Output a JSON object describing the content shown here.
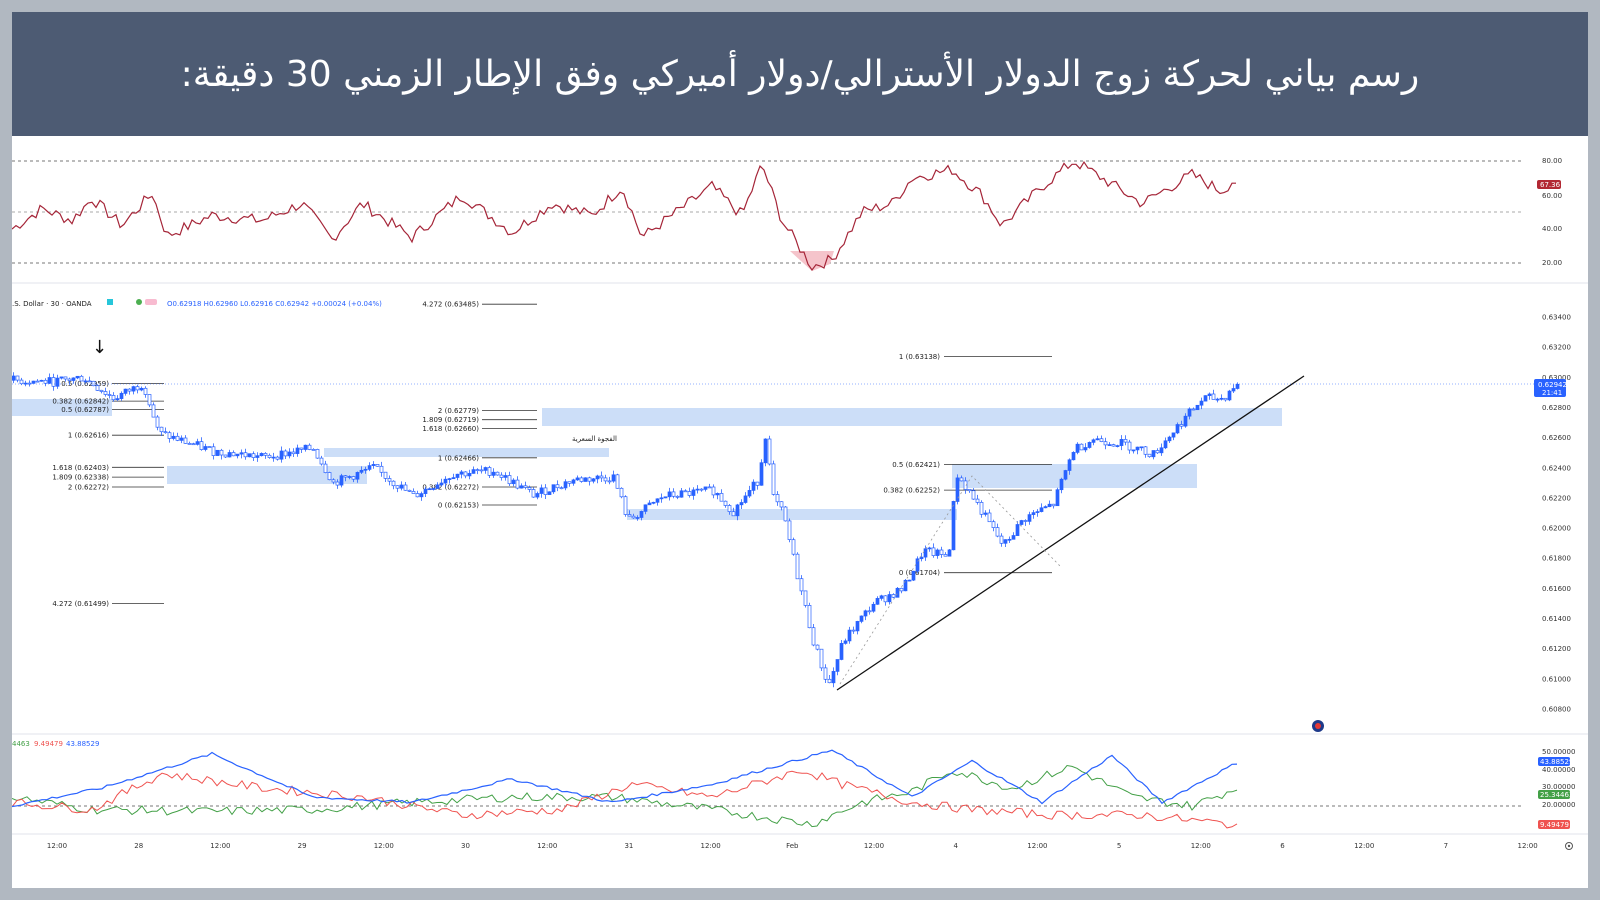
{
  "header": {
    "title": "رسم بياني لحركة زوج الدولار الأسترالي/دولار أميركي وفق الإطار الزمني 30 دقيقة:"
  },
  "colors": {
    "header_bg": "#4d5b73",
    "candle_up": "#2962ff",
    "candle_down": "#2962ff",
    "rsi_line": "#a52538",
    "zone_fill": "#bbd3f5",
    "rsi_badge": "#b22833",
    "price_badge": "#2962ff",
    "di_plus": "#43a047",
    "di_minus": "#ef5350",
    "adx": "#2962ff"
  },
  "legend": {
    "symbol": ".S. Dollar · 30 · OANDA",
    "ohlc": "O0.62918 H0.62960 L0.62916 C0.62942 +0.00024 (+0.04%)"
  },
  "rsi_labels": [
    "80.00",
    "60.00",
    "40.00",
    "20.00"
  ],
  "rsi_badge": "67.36",
  "price_labels": [
    "0.63400",
    "0.63200",
    "0.63000",
    "0.62800",
    "0.62600",
    "0.62400",
    "0.62200",
    "0.62000",
    "0.61800",
    "0.61600",
    "0.61400",
    "0.61200",
    "0.61000",
    "0.60800"
  ],
  "price_badge": "0.62942",
  "price_badge_time": "21:41",
  "adx_labels": [
    "50.00000",
    "40.00000",
    "30.00000",
    "20.00000"
  ],
  "adx_badges": [
    "43.88529",
    "25.34463",
    "9.49479"
  ],
  "adx_legend": {
    "a": "4463",
    "b": "9.49479",
    "c": "43.88529"
  },
  "time_labels": [
    "12:00",
    "28",
    "12:00",
    "29",
    "12:00",
    "30",
    "12:00",
    "31",
    "12:00",
    "Feb",
    "12:00",
    "4",
    "12:00",
    "5",
    "12:00",
    "6",
    "12:00",
    "7",
    "12:00"
  ],
  "fib_left": [
    "0.5 (0.62959)",
    "0.382 (0.62842)",
    "0.5 (0.62787)",
    "1 (0.62616)",
    "1.618 (0.62403)",
    "1.809 (0.62338)",
    "2 (0.62272)",
    "4.272 (0.61499)"
  ],
  "fib_mid": [
    "4.272 (0.63485)",
    "2 (0.62779)",
    "1.809 (0.62719)",
    "1.618 (0.62660)",
    "1 (0.62466)",
    "0.382 (0.62272)",
    "0 (0.62153)"
  ],
  "fib_right": [
    "1 (0.63138)",
    "0.5 (0.62421)",
    "0.382 (0.62252)",
    "0 (0.61704)"
  ],
  "gap_label": "الفجوة السعرية",
  "chart_data": {
    "type": "candlestick",
    "timeframe": "30",
    "instrument": "AUD/USD",
    "x": [
      "12:00",
      "28",
      "12:00",
      "29",
      "12:00",
      "30",
      "12:00",
      "31",
      "12:00",
      "Feb",
      "12:00",
      "4",
      "12:00",
      "5",
      "12:00",
      "6",
      "12:00",
      "7",
      "12:00"
    ],
    "price_range": [
      0.6075,
      0.6348
    ],
    "price_path": [
      [
        0,
        0.6298
      ],
      [
        40,
        0.6297
      ],
      [
        70,
        0.63
      ],
      [
        100,
        0.6286
      ],
      [
        130,
        0.6296
      ],
      [
        145,
        0.6263
      ],
      [
        200,
        0.6251
      ],
      [
        250,
        0.6247
      ],
      [
        300,
        0.6253
      ],
      [
        320,
        0.623
      ],
      [
        360,
        0.624
      ],
      [
        400,
        0.6221
      ],
      [
        440,
        0.6236
      ],
      [
        480,
        0.6238
      ],
      [
        520,
        0.6222
      ],
      [
        560,
        0.6232
      ],
      [
        600,
        0.6234
      ],
      [
        615,
        0.6205
      ],
      [
        650,
        0.6221
      ],
      [
        700,
        0.6225
      ],
      [
        720,
        0.6211
      ],
      [
        745,
        0.6232
      ],
      [
        752,
        0.6262
      ],
      [
        760,
        0.622
      ],
      [
        770,
        0.6209
      ],
      [
        785,
        0.6166
      ],
      [
        800,
        0.6125
      ],
      [
        815,
        0.6095
      ],
      [
        830,
        0.6125
      ],
      [
        860,
        0.615
      ],
      [
        890,
        0.616
      ],
      [
        910,
        0.6185
      ],
      [
        935,
        0.6181
      ],
      [
        943,
        0.6236
      ],
      [
        960,
        0.622
      ],
      [
        990,
        0.6188
      ],
      [
        1010,
        0.6206
      ],
      [
        1040,
        0.6216
      ],
      [
        1060,
        0.6252
      ],
      [
        1080,
        0.6259
      ],
      [
        1110,
        0.6256
      ],
      [
        1140,
        0.6249
      ],
      [
        1170,
        0.6272
      ],
      [
        1190,
        0.6286
      ],
      [
        1210,
        0.6286
      ],
      [
        1220,
        0.6294
      ]
    ],
    "rsi_path": [
      [
        0,
        40
      ],
      [
        30,
        52
      ],
      [
        60,
        45
      ],
      [
        80,
        58
      ],
      [
        110,
        42
      ],
      [
        140,
        61
      ],
      [
        155,
        36
      ],
      [
        200,
        48
      ],
      [
        250,
        45
      ],
      [
        290,
        55
      ],
      [
        320,
        34
      ],
      [
        350,
        55
      ],
      [
        400,
        35
      ],
      [
        450,
        60
      ],
      [
        500,
        38
      ],
      [
        540,
        55
      ],
      [
        580,
        48
      ],
      [
        610,
        65
      ],
      [
        630,
        35
      ],
      [
        660,
        48
      ],
      [
        700,
        65
      ],
      [
        730,
        48
      ],
      [
        750,
        78
      ],
      [
        770,
        45
      ],
      [
        800,
        18
      ],
      [
        820,
        22
      ],
      [
        850,
        50
      ],
      [
        880,
        55
      ],
      [
        900,
        70
      ],
      [
        940,
        75
      ],
      [
        970,
        60
      ],
      [
        990,
        42
      ],
      [
        1030,
        65
      ],
      [
        1062,
        80
      ],
      [
        1090,
        70
      ],
      [
        1130,
        55
      ],
      [
        1150,
        62
      ],
      [
        1180,
        72
      ],
      [
        1210,
        62
      ],
      [
        1220,
        68
      ]
    ],
    "adx_path": [
      [
        0,
        20
      ],
      [
        90,
        30
      ],
      [
        200,
        49
      ],
      [
        300,
        25
      ],
      [
        400,
        22
      ],
      [
        500,
        35
      ],
      [
        600,
        22
      ],
      [
        700,
        32
      ],
      [
        820,
        51
      ],
      [
        900,
        25
      ],
      [
        960,
        45
      ],
      [
        1030,
        22
      ],
      [
        1100,
        48
      ],
      [
        1150,
        22
      ],
      [
        1225,
        44
      ]
    ],
    "di_plus_path": [
      [
        0,
        25
      ],
      [
        80,
        18
      ],
      [
        200,
        17
      ],
      [
        300,
        18
      ],
      [
        400,
        22
      ],
      [
        500,
        25
      ],
      [
        600,
        25
      ],
      [
        700,
        18
      ],
      [
        800,
        10
      ],
      [
        850,
        22
      ],
      [
        900,
        28
      ],
      [
        940,
        40
      ],
      [
        1000,
        30
      ],
      [
        1060,
        42
      ],
      [
        1120,
        25
      ],
      [
        1180,
        20
      ],
      [
        1225,
        30
      ]
    ],
    "di_minus_path": [
      [
        0,
        22
      ],
      [
        80,
        18
      ],
      [
        150,
        38
      ],
      [
        250,
        30
      ],
      [
        350,
        25
      ],
      [
        450,
        15
      ],
      [
        550,
        18
      ],
      [
        620,
        32
      ],
      [
        700,
        25
      ],
      [
        790,
        40
      ],
      [
        830,
        32
      ],
      [
        900,
        22
      ],
      [
        960,
        18
      ],
      [
        1040,
        15
      ],
      [
        1130,
        15
      ],
      [
        1225,
        9.5
      ]
    ],
    "rsi_badge": 67.36,
    "last_price": 0.62942
  }
}
